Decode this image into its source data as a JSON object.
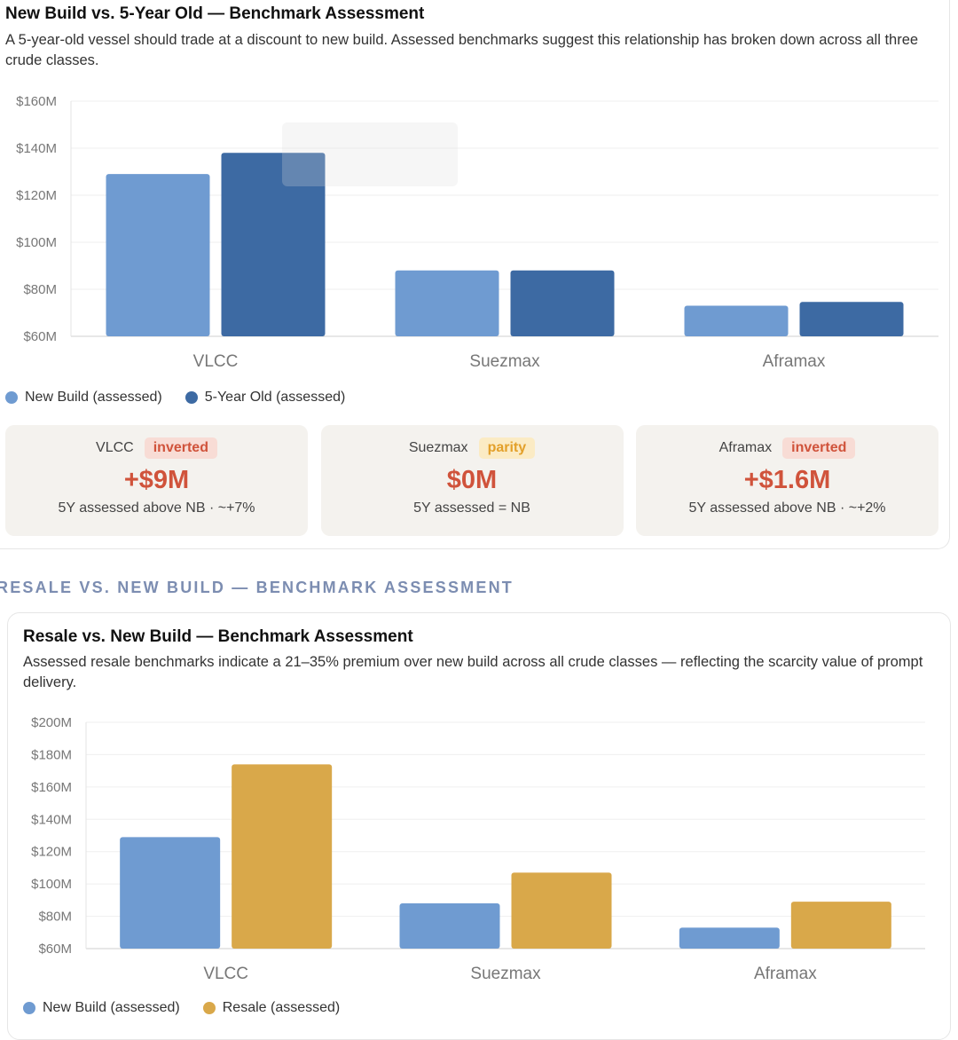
{
  "card1": {
    "title": "New Build vs. 5-Year Old — Benchmark Assessment",
    "subtitle": "A 5-year-old vessel should trade at a discount to new build. Assessed benchmarks suggest this relationship has broken down across all three crude classes.",
    "legend": [
      "New Build (assessed)",
      "5-Year Old (assessed)"
    ],
    "stats": [
      {
        "label": "VLCC",
        "badge": "inverted",
        "value": "+$9M",
        "note": "5Y assessed above NB · ~+7%"
      },
      {
        "label": "Suezmax",
        "badge": "parity",
        "value": "$0M",
        "note": "5Y assessed = NB"
      },
      {
        "label": "Aframax",
        "badge": "inverted",
        "value": "+$1.6M",
        "note": "5Y assessed above NB · ~+2%"
      }
    ]
  },
  "section_heading": "RESALE VS. NEW BUILD — BENCHMARK ASSESSMENT",
  "card2": {
    "title": "Resale vs. New Build — Benchmark Assessment",
    "subtitle": "Assessed resale benchmarks indicate a 21–35% premium over new build across all crude classes — reflecting the scarcity value of prompt delivery.",
    "legend": [
      "New Build (assessed)",
      "Resale (assessed)"
    ]
  },
  "colors": {
    "new_build": "#6f9bd1",
    "five_year": "#3d6aa3",
    "resale": "#d9a84a",
    "inverted": "#d0533b",
    "parity": "#e3a02a"
  },
  "chart_data": [
    {
      "type": "bar",
      "categories": [
        "VLCC",
        "Suezmax",
        "Aframax"
      ],
      "series": [
        {
          "name": "New Build (assessed)",
          "values": [
            129,
            88,
            73
          ]
        },
        {
          "name": "5-Year Old (assessed)",
          "values": [
            138,
            88,
            74.6
          ]
        }
      ],
      "yticks": [
        "$60M",
        "$80M",
        "$100M",
        "$120M",
        "$140M",
        "$160M"
      ],
      "ylim": [
        60,
        160
      ],
      "grid": true,
      "legend": "bottom-left"
    },
    {
      "type": "bar",
      "categories": [
        "VLCC",
        "Suezmax",
        "Aframax"
      ],
      "series": [
        {
          "name": "New Build (assessed)",
          "values": [
            129,
            88,
            73
          ]
        },
        {
          "name": "Resale (assessed)",
          "values": [
            174,
            107,
            89
          ]
        }
      ],
      "yticks": [
        "$60M",
        "$80M",
        "$100M",
        "$120M",
        "$140M",
        "$160M",
        "$180M",
        "$200M"
      ],
      "ylim": [
        60,
        200
      ],
      "grid": true,
      "legend": "bottom-left"
    }
  ]
}
